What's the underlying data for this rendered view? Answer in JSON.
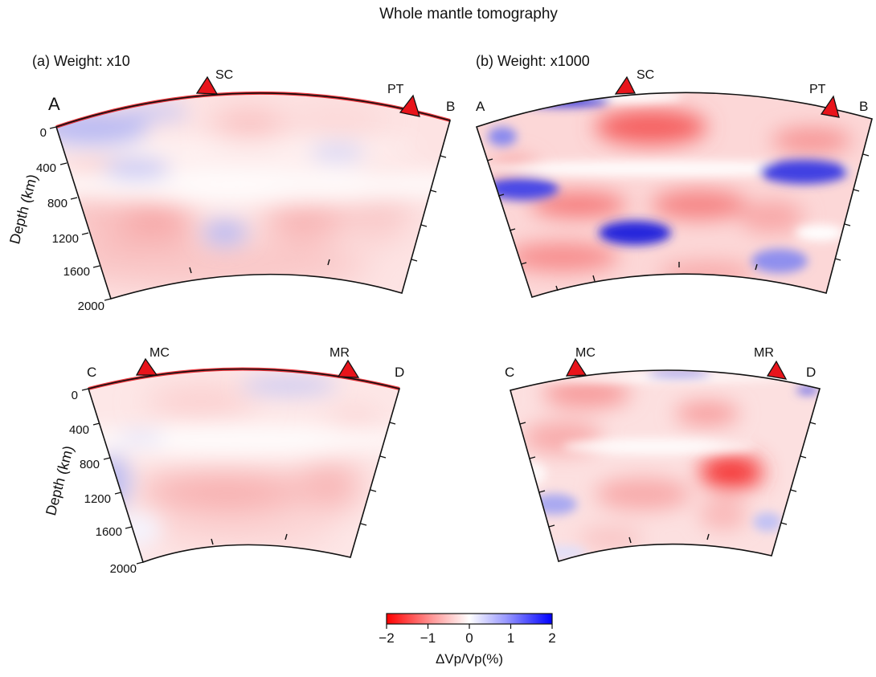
{
  "title": "Whole mantle tomography",
  "panel_labels": [
    "(a) Weight: x10",
    "(b) Weight: x1000"
  ],
  "depth_axis": {
    "label": "Depth (km)",
    "ticks": [
      "0",
      "400",
      "800",
      "1200",
      "1600",
      "2000"
    ]
  },
  "sections": [
    {
      "id": "a-top",
      "start_label": "A",
      "end_label": "B",
      "stations": [
        "SC",
        "PT"
      ]
    },
    {
      "id": "b-top",
      "start_label": "A",
      "end_label": "B",
      "stations": [
        "SC",
        "PT"
      ]
    },
    {
      "id": "a-bottom",
      "start_label": "C",
      "end_label": "D",
      "stations": [
        "MC",
        "MR"
      ]
    },
    {
      "id": "b-bottom",
      "start_label": "C",
      "end_label": "D",
      "stations": [
        "MC",
        "MR"
      ]
    }
  ],
  "colorbar": {
    "label": "ΔVp/Vp(%)",
    "ticks": [
      "−2",
      "−1",
      "0",
      "1",
      "2"
    ],
    "range": [
      -2,
      2
    ],
    "colors": {
      "negative": "#ff0000",
      "zero": "#ffffff",
      "positive": "#0000ff"
    }
  },
  "colors": {
    "station_marker": "#e8141b",
    "section_outline": "#111111"
  }
}
